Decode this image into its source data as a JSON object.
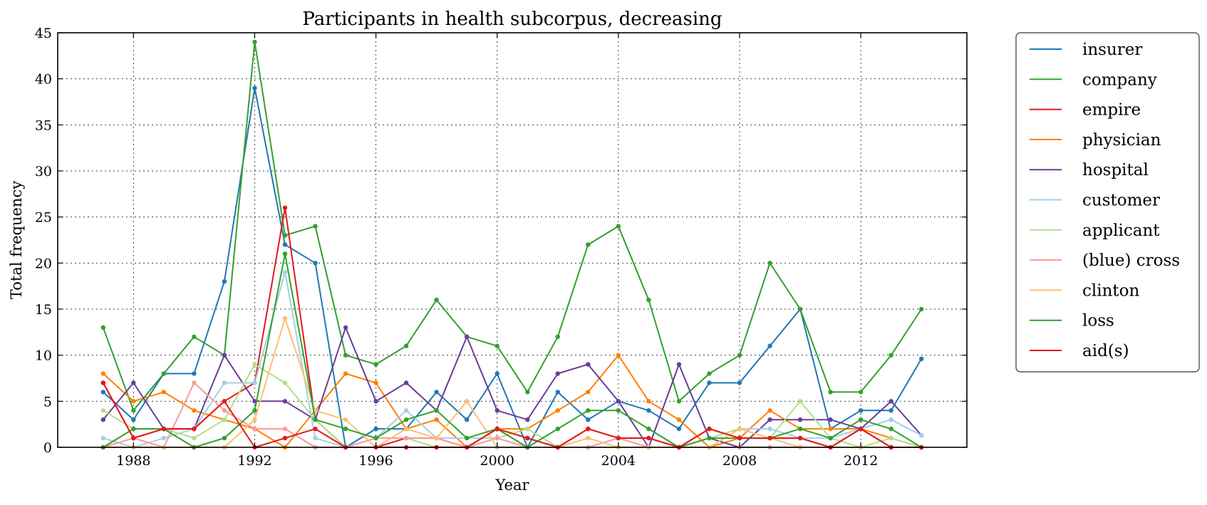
{
  "chart_data": {
    "type": "line",
    "title": "Participants in health subcorpus, decreasing",
    "xlabel": "Year",
    "ylabel": "Total frequency",
    "xlim": [
      1985.5,
      2015.5
    ],
    "ylim": [
      0,
      45
    ],
    "xticks": [
      1988,
      1992,
      1996,
      2000,
      2004,
      2008,
      2012
    ],
    "yticks": [
      0,
      5,
      10,
      15,
      20,
      25,
      30,
      35,
      40,
      45
    ],
    "grid": true,
    "legend_position": "outside-right-top",
    "x": [
      1987,
      1988,
      1989,
      1990,
      1991,
      1992,
      1993,
      1994,
      1995,
      1996,
      1997,
      1998,
      1999,
      2000,
      2001,
      2002,
      2003,
      2004,
      2005,
      2006,
      2007,
      2008,
      2009,
      2010,
      2011,
      2012,
      2013,
      2014
    ],
    "series": [
      {
        "name": "insurer",
        "color": "#1f78b4",
        "values": [
          6,
          3,
          8,
          8,
          18,
          39,
          22,
          20,
          0,
          2,
          2,
          6,
          3,
          8,
          0,
          6,
          3,
          5,
          4,
          2,
          7,
          7,
          11,
          15,
          2,
          4,
          4,
          9.6
        ]
      },
      {
        "name": "company",
        "color": "#33a02c",
        "values": [
          13,
          4,
          8,
          12,
          10,
          44,
          23,
          24,
          10,
          9,
          11,
          16,
          12,
          11,
          6,
          12,
          22,
          24,
          16,
          5,
          8,
          10,
          20,
          15,
          6,
          6,
          10,
          15
        ]
      },
      {
        "name": "empire",
        "color": "#e31a1c",
        "values": [
          7,
          1,
          2,
          2,
          5,
          7,
          26,
          3,
          0,
          0,
          1,
          1,
          0,
          2,
          1,
          0,
          2,
          1,
          1,
          0,
          2,
          1,
          1,
          1,
          0,
          2,
          0,
          0
        ]
      },
      {
        "name": "physician",
        "color": "#ff7f00",
        "values": [
          8,
          5,
          6,
          4,
          3,
          2,
          0,
          4,
          8,
          7,
          2,
          3,
          0,
          2,
          2,
          4,
          6,
          10,
          5,
          3,
          0,
          1,
          4,
          2,
          2,
          2,
          1,
          0
        ]
      },
      {
        "name": "hospital",
        "color": "#6a3d9a",
        "values": [
          3,
          7,
          2,
          2,
          10,
          5,
          5,
          3,
          13,
          5,
          7,
          4,
          12,
          4,
          3,
          8,
          9,
          5,
          0,
          9,
          1,
          0,
          3,
          3,
          3,
          2,
          5,
          1.3
        ]
      },
      {
        "name": "customer",
        "color": "#a6cee3",
        "values": [
          1,
          0,
          1,
          2,
          7,
          7,
          19,
          1,
          0,
          1,
          4,
          1,
          1,
          1,
          0,
          0,
          0,
          0,
          0,
          0,
          1,
          2,
          2,
          1,
          1,
          2,
          3,
          1.3
        ]
      },
      {
        "name": "applicant",
        "color": "#b2df8a",
        "values": [
          4,
          2,
          2,
          1,
          3,
          9,
          7,
          3,
          0,
          1,
          1,
          0,
          0,
          1,
          2,
          0,
          0,
          0,
          0,
          0,
          1,
          2,
          1,
          5,
          1,
          0,
          1,
          0
        ]
      },
      {
        "name": "(blue) cross",
        "color": "#fb9a99",
        "values": [
          0,
          1,
          0,
          7,
          4,
          2,
          2,
          0,
          0,
          1,
          1,
          1,
          0,
          1,
          0,
          0,
          0,
          1,
          0,
          0,
          0,
          0,
          0,
          0,
          0,
          0,
          0,
          0
        ]
      },
      {
        "name": "clinton",
        "color": "#fdbf6f",
        "values": [
          0,
          0,
          0,
          0,
          0,
          3,
          14,
          4,
          3,
          0,
          2,
          1,
          5,
          0,
          0,
          0,
          1,
          0,
          0,
          0,
          0,
          2,
          1,
          0,
          0,
          0,
          0,
          0
        ]
      },
      {
        "name": "loss",
        "color": "#33a02c",
        "values": [
          0,
          2,
          2,
          0,
          1,
          4,
          21,
          3,
          2,
          1,
          3,
          4,
          1,
          2,
          0,
          2,
          4,
          4,
          2,
          0,
          1,
          1,
          1,
          2,
          1,
          3,
          2,
          0
        ]
      },
      {
        "name": "aid(s)",
        "color": "#e31a1c",
        "values": [
          7,
          1,
          2,
          2,
          5,
          0,
          1,
          2,
          0,
          0,
          0,
          0,
          0,
          2,
          1,
          0,
          2,
          1,
          1,
          0,
          2,
          1,
          1,
          1,
          0,
          2,
          0,
          0
        ]
      }
    ]
  }
}
